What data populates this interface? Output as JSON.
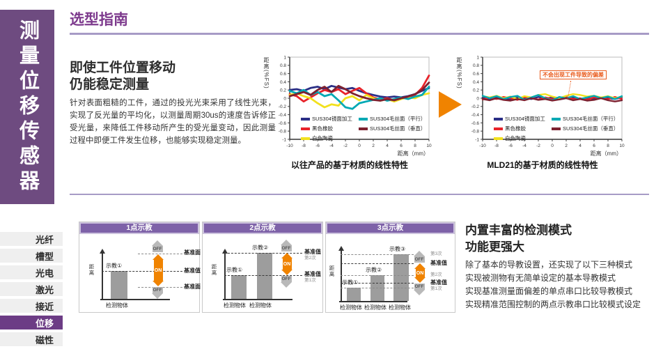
{
  "page": {
    "title": "选型指南"
  },
  "sidebar": {
    "vertical_title": "测量位移传感器",
    "menu": [
      {
        "label": "光纤",
        "active": false
      },
      {
        "label": "槽型",
        "active": false
      },
      {
        "label": "光电",
        "active": false
      },
      {
        "label": "激光",
        "active": false
      },
      {
        "label": "接近",
        "active": false
      },
      {
        "label": "位移",
        "active": true
      },
      {
        "label": "磁性",
        "active": false
      }
    ]
  },
  "section1": {
    "heading_line1": "即使工件位置移动",
    "heading_line2": "仍能稳定测量",
    "body": "针对表面粗糙的工件，通过的投光光束采用了线性光束，实现了反光量的平均化，以测量周期30us的速度告诉修正受光量，来降低工件移动所产生的受光量变动，因此测量过程中即便工件发生位移，也能够实现稳定测量。"
  },
  "chart_data": [
    {
      "type": "line",
      "title": "以往产品的基于材质的线性特性",
      "ylabel": "距离(%FS)",
      "xlabel": "距离（mm）",
      "xlim": [
        -10,
        10
      ],
      "ylim": [
        -1,
        1
      ],
      "x_ticks": [
        -10,
        -8,
        -6,
        -4,
        -2,
        0,
        2,
        4,
        6,
        8,
        10
      ],
      "y_ticks": [
        1,
        0.8,
        0.6,
        0.4,
        0.2,
        0,
        -0.2,
        -0.4,
        -0.6,
        -0.8,
        -1
      ],
      "grid": false,
      "legend_position": "inside-bottom-left",
      "x": [
        -10,
        -9,
        -8,
        -7,
        -6,
        -5,
        -4,
        -3,
        -2,
        -1,
        0,
        1,
        2,
        3,
        4,
        5,
        6,
        7,
        8,
        9,
        10
      ],
      "series": [
        {
          "name": "SUS304镜面加工",
          "color": "#2b2f86",
          "values": [
            0.2,
            0.22,
            0.18,
            0.25,
            0.28,
            0.22,
            0.3,
            0.26,
            0.22,
            0.25,
            0.18,
            0.12,
            0.08,
            0.04,
            0.02,
            0.04,
            0.02,
            0.05,
            0.1,
            0.18,
            0.25
          ]
        },
        {
          "name": "黑色橡胶",
          "color": "#e8232a",
          "values": [
            0.1,
            0.05,
            -0.08,
            0.02,
            0.12,
            0.2,
            0.15,
            0.22,
            0.1,
            0.18,
            0.25,
            0.12,
            0.02,
            -0.03,
            0,
            -0.05,
            0,
            0.03,
            0.08,
            0.25,
            0.55
          ]
        },
        {
          "name": "白色陶瓷",
          "color": "#f2e11e",
          "values": [
            0.08,
            0.12,
            0.05,
            0,
            -0.12,
            -0.22,
            -0.15,
            -0.18,
            0,
            0.05,
            -0.05,
            0.08,
            0,
            -0.06,
            -0.02,
            -0.08,
            -0.02,
            0.02,
            0,
            0.08,
            0.12
          ]
        },
        {
          "name": "SUS304毛丝面（平行）",
          "color": "#00a9b4",
          "values": [
            0.18,
            0.12,
            0.2,
            0.08,
            0.15,
            0.05,
            0.1,
            -0.05,
            -0.22,
            -0.26,
            -0.12,
            -0.08,
            -0.04,
            0,
            -0.06,
            -0.02,
            0.02,
            -0.02,
            0.04,
            0.08,
            0.28
          ]
        },
        {
          "name": "SUS304毛丝面（垂直）",
          "color": "#7d2130",
          "values": [
            0.05,
            0.1,
            0.15,
            0.08,
            0.2,
            0.28,
            0.15,
            0.3,
            0.22,
            0.12,
            0.05,
            0,
            -0.04,
            -0.06,
            -0.02,
            -0.05,
            0,
            0.04,
            0.1,
            0.2,
            0.38
          ]
        }
      ]
    },
    {
      "type": "line",
      "title": "MLD21的基于材质的线性特性",
      "ylabel": "距离(%FS)",
      "xlabel": "距离（mm）",
      "annotation": "不会出现工件导致的偏差",
      "xlim": [
        -10,
        10
      ],
      "ylim": [
        -1,
        1
      ],
      "x_ticks": [
        -10,
        -8,
        -6,
        -4,
        -2,
        0,
        2,
        4,
        6,
        8,
        10
      ],
      "y_ticks": [
        1,
        0.8,
        0.6,
        0.4,
        0.2,
        0,
        -0.2,
        -0.4,
        -0.6,
        -0.8,
        -1
      ],
      "grid": false,
      "legend_position": "inside-bottom-left",
      "x": [
        -10,
        -9,
        -8,
        -7,
        -6,
        -5,
        -4,
        -3,
        -2,
        -1,
        0,
        1,
        2,
        3,
        4,
        5,
        6,
        7,
        8,
        9,
        10
      ],
      "series": [
        {
          "name": "SUS304镜面加工",
          "color": "#2b2f86",
          "values": [
            0.02,
            -0.02,
            0.03,
            0,
            -0.03,
            0.02,
            0,
            -0.02,
            0.03,
            -0.01,
            0.02,
            -0.03,
            0,
            0.02,
            -0.02,
            0.01,
            -0.02,
            0.02,
            0,
            -0.02,
            0.02
          ]
        },
        {
          "name": "黑色橡胶",
          "color": "#e8232a",
          "values": [
            -0.03,
            0.02,
            -0.02,
            0.03,
            0,
            -0.04,
            0.02,
            0,
            -0.03,
            0.02,
            -0.02,
            0,
            0.03,
            -0.02,
            0,
            -0.03,
            0.02,
            0,
            -0.02,
            0.03,
            -0.02
          ]
        },
        {
          "name": "白色陶瓷",
          "color": "#f2e11e",
          "values": [
            0.05,
            0.02,
            0.06,
            0,
            0.04,
            -0.02,
            0.05,
            0.02,
            0.08,
            0.1,
            0.04,
            0,
            0.06,
            0.1,
            0.08,
            0.04,
            0.06,
            0.02,
            0.05,
            0,
            0.04
          ]
        },
        {
          "name": "SUS304毛丝面（平行）",
          "color": "#00a9b4",
          "values": [
            0.06,
            0,
            0.05,
            -0.02,
            0.03,
            0.06,
            -0.04,
            0.02,
            0.08,
            0,
            -0.05,
            0.03,
            0,
            0.05,
            -0.02,
            0.02,
            0.06,
            0,
            0.04,
            -0.02,
            0.05
          ]
        },
        {
          "name": "SUS304毛丝面（垂直）",
          "color": "#7d2130",
          "values": [
            -0.02,
            -0.05,
            0,
            -0.04,
            -0.06,
            -0.02,
            -0.05,
            0,
            -0.04,
            -0.02,
            -0.06,
            -0.03,
            0,
            -0.05,
            -0.02,
            -0.06,
            -0.04,
            0,
            -0.05,
            -0.08,
            -0.05
          ]
        }
      ]
    }
  ],
  "section2": {
    "heading_line1": "内置丰富的检测模式",
    "heading_line2": "功能更强大",
    "body_lines": [
      "除了基本的导教设置，还实现了以下三种模式",
      "实现被测物有无简单设定的基本导教模式",
      "实现基准测量面偏差的单点串口比较导教模式",
      "实现精准范围控制的两点示教串口比较模式设定"
    ],
    "boxes": [
      {
        "title": "1点示教",
        "axis_label": "距离",
        "bar1_label": "示教①",
        "label_top": "基准面",
        "label_mid": "基准值",
        "label_bottom": "基准面",
        "on_label": "ON",
        "off_label": "OFF",
        "object1": "检测物体"
      },
      {
        "title": "2点示教",
        "axis_label": "距离",
        "bar1_label": "示教①",
        "bar2_label": "示教②",
        "label1": "基准值",
        "label1_sub": "第2次",
        "label2": "基准值",
        "label2_sub": "第1次",
        "on_label": "ON",
        "off_label": "OFF",
        "object1": "检测物体",
        "object2": "检测物体"
      },
      {
        "title": "3点示教",
        "axis_label": "距离",
        "bar1_label": "示教①",
        "bar2_label": "示教②",
        "bar3_label": "示教③",
        "r1": "第3次",
        "r2": "基准值",
        "r3": "第2次",
        "r4": "基准值",
        "r5": "第1次",
        "on_label": "ON",
        "off_label": "OFF",
        "object1": "检测物体",
        "object2": "检测物体",
        "object3": "检测物体"
      }
    ]
  },
  "colors": {
    "brand_purple": "#6e4b80",
    "title_purple": "#7d3a8d",
    "rule_purple": "#a79bc6",
    "active_menu_purple": "#6c3c85",
    "menu_bg": "#efefef",
    "accent_orange": "#f08300",
    "annotation_orange": "#e95b1c",
    "diagram_header_purple": "#7e62a8",
    "diagram_frame_purple": "#cdc3de",
    "bar_gray": "#9d9d9d",
    "arrow_gray": "#b9b9b9"
  }
}
